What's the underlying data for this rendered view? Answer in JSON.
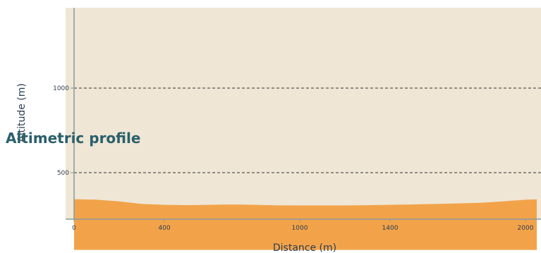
{
  "chart_data": {
    "type": "area",
    "title": "Altimetric profile",
    "xlabel": "Distance (m)",
    "ylabel": "Altitude (m)",
    "xlim": [
      0,
      2060
    ],
    "ylim": [
      20,
      1250
    ],
    "x_ticks": [
      0,
      400,
      1000,
      1400,
      2000
    ],
    "x_tick_labels": [
      "0",
      "400",
      "1000",
      "1400",
      "2000"
    ],
    "y_ticks": [
      500,
      1000
    ],
    "y_tick_labels": [
      "500",
      "1000"
    ],
    "grid": "horizontal dashed at 500 and 1000",
    "series": [
      {
        "x": [
          0,
          100,
          200,
          300,
          400,
          500,
          600,
          700,
          800,
          900,
          1000,
          1100,
          1200,
          1300,
          1400,
          1500,
          1600,
          1700,
          1800,
          1900,
          2000,
          2050
        ],
        "y": [
          343,
          340,
          330,
          315,
          310,
          308,
          310,
          312,
          310,
          307,
          306,
          306,
          306,
          308,
          310,
          312,
          315,
          318,
          322,
          330,
          340,
          342
        ],
        "baseline": 43
      }
    ],
    "colors": {
      "plot_background": "#efe6d5",
      "area_fill": "#f2a34a",
      "axis": "#8a9aa0",
      "grid": "#333333",
      "text": "#2b3d4f",
      "title": "#2a5f6b"
    }
  }
}
